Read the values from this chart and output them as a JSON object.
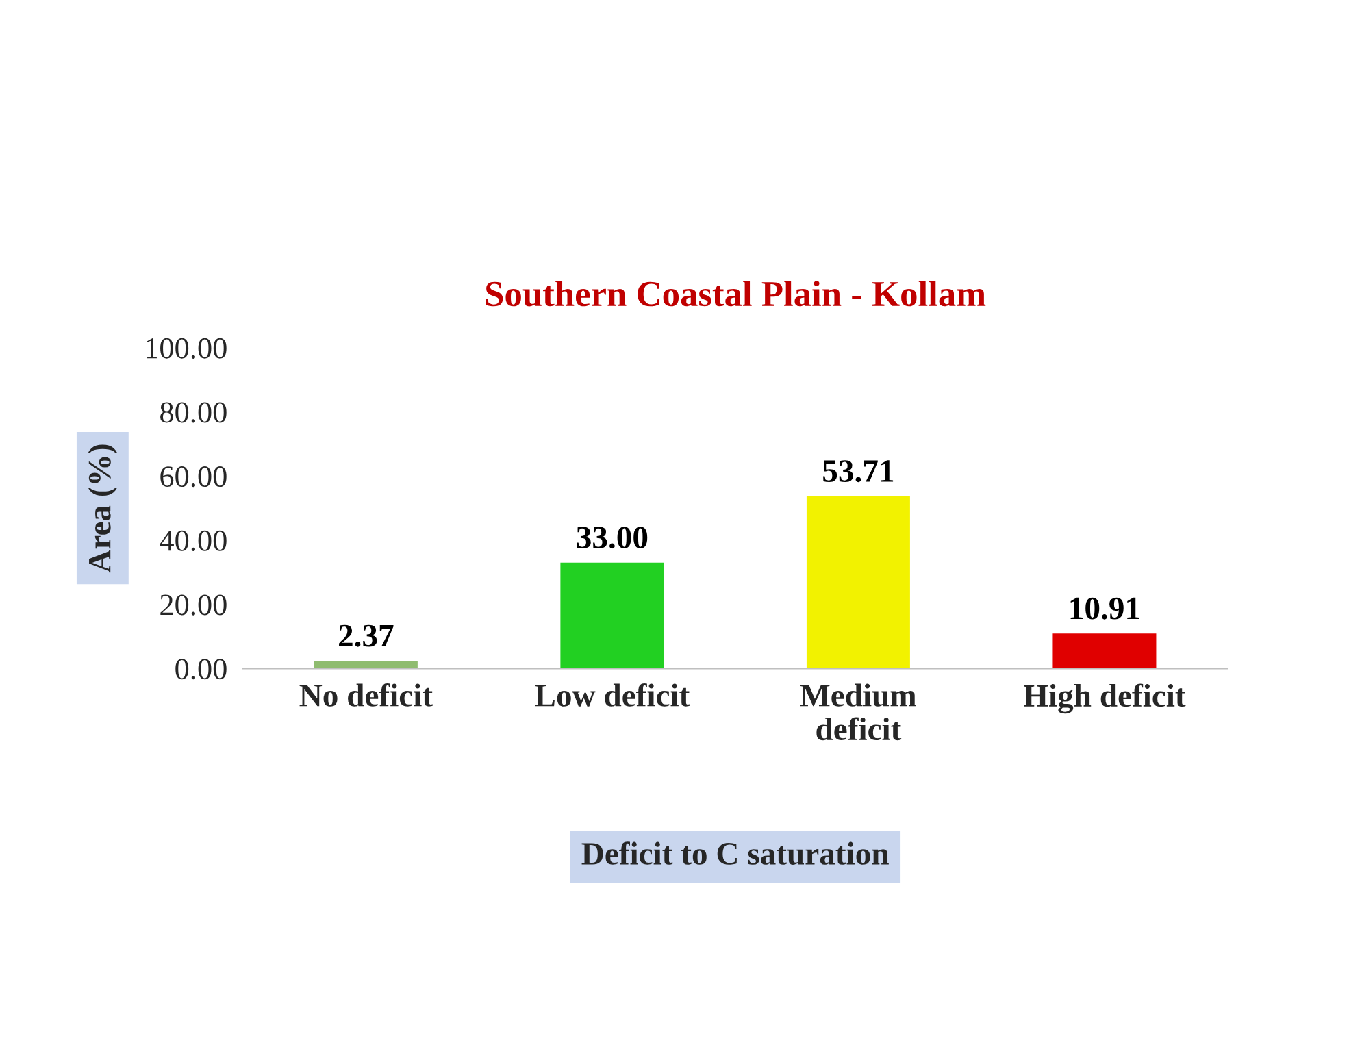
{
  "chart_data": {
    "type": "bar",
    "title": "Southern Coastal Plain - Kollam",
    "xlabel": "Deficit to C saturation",
    "ylabel": "Area (%)",
    "categories": [
      "No deficit",
      "Low deficit",
      "Medium\ndeficit",
      "High deficit"
    ],
    "values": [
      2.37,
      33.0,
      53.71,
      10.91
    ],
    "value_labels": [
      "2.37",
      "33.00",
      "53.71",
      "10.91"
    ],
    "colors": [
      "#8fbc6f",
      "#22d022",
      "#f2f200",
      "#e00000"
    ],
    "ylim": [
      0,
      100
    ],
    "yticks": [
      {
        "value": 0,
        "label": "0.00"
      },
      {
        "value": 20,
        "label": "20.00"
      },
      {
        "value": 40,
        "label": "40.00"
      },
      {
        "value": 60,
        "label": "60.00"
      },
      {
        "value": 80,
        "label": "80.00"
      },
      {
        "value": 100,
        "label": "100.00"
      }
    ],
    "grid": false
  }
}
